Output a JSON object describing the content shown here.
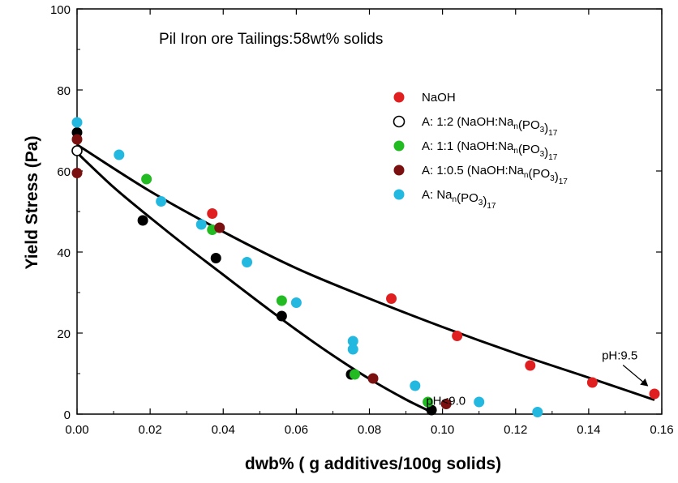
{
  "chart_data": {
    "type": "scatter",
    "title": "Pil Iron ore Tailings:58wt% solids",
    "xlabel": "dwb% ( g additives/100g solids)",
    "ylabel": "Yield Stress (Pa)",
    "xlim": [
      0,
      0.16
    ],
    "ylim": [
      0,
      100
    ],
    "x_ticks": [
      0.0,
      0.02,
      0.04,
      0.06,
      0.08,
      0.1,
      0.12,
      0.14,
      0.16
    ],
    "x_tick_labels": [
      "0.00",
      "0.02",
      "0.04",
      "0.06",
      "0.08",
      "0.10",
      "0.12",
      "0.14",
      "0.16"
    ],
    "y_ticks": [
      0,
      20,
      40,
      60,
      80,
      100
    ],
    "y_tick_labels": [
      "0",
      "20",
      "40",
      "60",
      "80",
      "100"
    ],
    "legend_position": "top-right",
    "series": [
      {
        "name": "NaOH",
        "legend": {
          "prefix": "NaOH",
          "sub1": "",
          "mid": "",
          "sub2": ""
        },
        "color": "#e02020",
        "marker": "filled",
        "points": [
          [
            0.037,
            49.5
          ],
          [
            0.086,
            28.5
          ],
          [
            0.104,
            19.3
          ],
          [
            0.124,
            12.0
          ],
          [
            0.141,
            7.8
          ],
          [
            0.158,
            5.0
          ]
        ]
      },
      {
        "name": "A: 1:2 (NaOH:Nan(PO3)17",
        "legend": {
          "prefix": "A: 1:2 (NaOH:Na",
          "sub1": "n",
          "mid": "(PO",
          "sub2": "3",
          "end": ")",
          "sub3": "17"
        },
        "color": "#000000",
        "marker": "filled",
        "points": [
          [
            0.0,
            69.5
          ],
          [
            0.018,
            47.8
          ],
          [
            0.038,
            38.5
          ],
          [
            0.056,
            24.2
          ],
          [
            0.075,
            9.8
          ],
          [
            0.097,
            1.0
          ]
        ]
      },
      {
        "name": "A: 1:2 (NaOH:Nan(PO3)17 - open",
        "legend": null,
        "color": "#000000",
        "marker": "open",
        "points": [
          [
            0.0,
            65.0
          ]
        ]
      },
      {
        "name": "A: 1:1 (NaOH:Nan(PO3)17",
        "legend": {
          "prefix": "A: 1:1 (NaOH:Na",
          "sub1": "n",
          "mid": "(PO",
          "sub2": "3",
          "end": ")",
          "sub3": "17"
        },
        "color": "#22bb22",
        "marker": "filled",
        "points": [
          [
            0.019,
            58.0
          ],
          [
            0.037,
            45.5
          ],
          [
            0.056,
            28.0
          ],
          [
            0.076,
            9.8
          ],
          [
            0.096,
            3.0
          ]
        ]
      },
      {
        "name": "A: 1:0.5 (NaOH:Nan(PO3)17",
        "legend": {
          "prefix": "A: 1:0.5 (NaOH:Na",
          "sub1": "n",
          "mid": "(PO",
          "sub2": "3",
          "end": ")",
          "sub3": "17"
        },
        "color": "#7a1010",
        "marker": "filled",
        "points": [
          [
            0.0,
            67.8
          ],
          [
            0.0,
            59.5
          ],
          [
            0.039,
            46.0
          ],
          [
            0.081,
            8.8
          ],
          [
            0.101,
            2.5
          ]
        ]
      },
      {
        "name": "A: Nan(PO3)17",
        "legend": {
          "prefix": "A: Na",
          "sub1": "n",
          "mid": "(PO",
          "sub2": "3",
          "end": ")",
          "sub3": "17"
        },
        "color": "#22b8e0",
        "marker": "filled",
        "points": [
          [
            0.0,
            72.0
          ],
          [
            0.0115,
            64.0
          ],
          [
            0.023,
            52.5
          ],
          [
            0.034,
            46.8
          ],
          [
            0.0465,
            37.5
          ],
          [
            0.06,
            27.5
          ],
          [
            0.0755,
            18.0
          ],
          [
            0.0755,
            16.0
          ],
          [
            0.0925,
            7.0
          ],
          [
            0.11,
            3.0
          ],
          [
            0.126,
            0.5
          ]
        ]
      }
    ],
    "fit_curves": [
      {
        "name": "NaOH fit",
        "points": [
          [
            0.0,
            66.5
          ],
          [
            0.02,
            55.0
          ],
          [
            0.04,
            45.0
          ],
          [
            0.06,
            36.0
          ],
          [
            0.08,
            28.5
          ],
          [
            0.1,
            21.5
          ],
          [
            0.12,
            15.0
          ],
          [
            0.14,
            9.0
          ],
          [
            0.158,
            3.5
          ]
        ]
      },
      {
        "name": "additive fit",
        "points": [
          [
            0.0,
            64.5
          ],
          [
            0.01,
            56.0
          ],
          [
            0.02,
            48.5
          ],
          [
            0.03,
            41.3
          ],
          [
            0.04,
            34.4
          ],
          [
            0.05,
            27.5
          ],
          [
            0.06,
            20.8
          ],
          [
            0.07,
            14.5
          ],
          [
            0.08,
            8.7
          ],
          [
            0.09,
            3.6
          ],
          [
            0.097,
            0.5
          ]
        ]
      }
    ],
    "annotations": [
      {
        "text": "pH:9.5",
        "x": 0.1485,
        "y": 14.5
      },
      {
        "text": "pH<9.0",
        "x": 0.0955,
        "y": 3.3
      }
    ]
  }
}
